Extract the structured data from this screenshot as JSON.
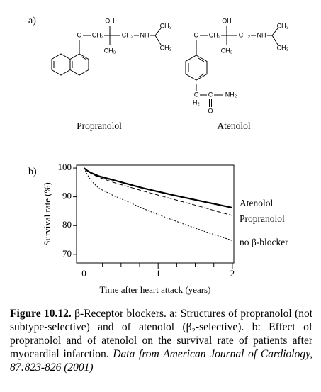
{
  "panel_a": {
    "label": "a)",
    "structures": [
      {
        "name": "Propranolol",
        "labels": [
          "OH",
          "O",
          "CH₂",
          "CH₂",
          "NH",
          "CH₃",
          "CH₃",
          "CH₃"
        ]
      },
      {
        "name": "Atenolol",
        "labels": [
          "OH",
          "O",
          "CH₂",
          "CH₂",
          "NH",
          "CH₃",
          "CH₃",
          "CH₃",
          "C",
          "H₂",
          "C",
          "O",
          "NH₂"
        ]
      }
    ]
  },
  "chart_data": {
    "type": "line",
    "panel_label": "b)",
    "x_label": "Time after heart attack (years)",
    "y_label": "Survival rate (%)",
    "x": [
      0,
      0.05,
      0.1,
      0.2,
      0.4,
      0.6,
      0.8,
      1.0,
      1.2,
      1.4,
      1.6,
      1.8,
      2.0
    ],
    "series": [
      {
        "name": "Atenolol",
        "color": "#000000",
        "style": "solid",
        "values": [
          100,
          99,
          98.3,
          97.2,
          95.8,
          94.4,
          93,
          91.8,
          90.6,
          89.5,
          88.4,
          87.3,
          86.2
        ]
      },
      {
        "name": "Propranolol",
        "color": "#000000",
        "style": "dashed",
        "values": [
          100,
          99,
          98,
          96.8,
          95,
          93.5,
          92,
          90.6,
          89.2,
          87.8,
          86.4,
          84.9,
          83.5
        ]
      },
      {
        "name": "no β-blocker",
        "color": "#000000",
        "style": "dotted",
        "values": [
          100,
          97.5,
          95.5,
          93,
          90.4,
          88.2,
          85.9,
          83.8,
          81.9,
          80,
          78.2,
          76.5,
          74.8
        ]
      }
    ],
    "xlim": [
      -0.1,
      2.02
    ],
    "ylim": [
      67,
      101
    ],
    "xticks": [
      0,
      1,
      2
    ],
    "xminorticks": [
      0.25,
      0.5,
      0.75,
      1.25,
      1.5,
      1.75
    ],
    "yticks": [
      70,
      80,
      90,
      100
    ],
    "grid": false
  },
  "caption": {
    "label": "Figure 10.12.",
    "text": "β-Receptor blockers. a: Structures of propranolol (not subtype-selective) and of atenolol (β₂-selective). b: Effect of propranolol and of atenolol on the survival rate of patients after myocardial infarction.",
    "source": "Data from American Journal of Cardiology, 87:823-826 (2001)"
  }
}
